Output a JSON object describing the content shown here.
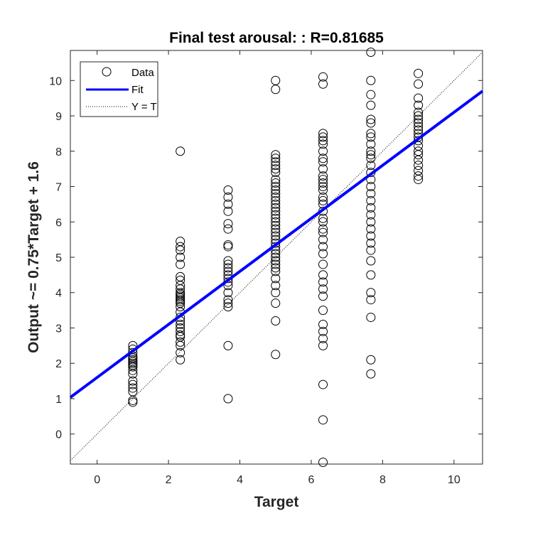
{
  "chart_data": {
    "type": "scatter",
    "title": "Final test arousal: : R=0.81685",
    "xlabel": "Target",
    "ylabel": "Output ~= 0.75*Target + 1.6",
    "xlim": [
      -0.75,
      10.8
    ],
    "ylim": [
      -0.85,
      10.85
    ],
    "xticks": [
      0,
      2,
      4,
      6,
      8,
      10
    ],
    "yticks": [
      0,
      1,
      2,
      3,
      4,
      5,
      6,
      7,
      8,
      9,
      10
    ],
    "grid": false,
    "legend_position": "top-left",
    "legend": [
      {
        "label": "Data",
        "style": "circle"
      },
      {
        "label": "Fit",
        "style": "solid"
      },
      {
        "label": "Y = T",
        "style": "dotted"
      }
    ],
    "colors": {
      "data": "#000000",
      "fit": "#0000ff",
      "identity": "#000000"
    },
    "fit": {
      "slope": 0.75,
      "intercept": 1.6
    },
    "series": [
      {
        "x": 1.0,
        "y": [
          0.9,
          0.95,
          1.2,
          1.3,
          1.4,
          1.5,
          1.7,
          1.8,
          1.9,
          1.95,
          2.0,
          2.05,
          2.1,
          2.15,
          2.2,
          2.3,
          2.4,
          2.5
        ]
      },
      {
        "x": 2.33,
        "y": [
          2.1,
          2.3,
          2.5,
          2.6,
          2.75,
          2.8,
          2.9,
          3.0,
          3.1,
          3.2,
          3.3,
          3.45,
          3.6,
          3.7,
          3.75,
          3.8,
          3.85,
          3.9,
          3.95,
          4.0,
          4.1,
          4.2,
          4.35,
          4.45,
          4.8,
          5.0,
          5.2,
          5.3,
          5.45,
          8.0
        ]
      },
      {
        "x": 3.67,
        "y": [
          1.0,
          2.5,
          3.6,
          3.7,
          3.8,
          4.0,
          4.2,
          4.3,
          4.4,
          4.5,
          4.6,
          4.7,
          4.8,
          4.9,
          5.3,
          5.35,
          5.8,
          5.95,
          6.3,
          6.5,
          6.7,
          6.9
        ]
      },
      {
        "x": 5.0,
        "y": [
          2.25,
          3.2,
          3.7,
          4.0,
          4.2,
          4.4,
          4.6,
          4.7,
          4.8,
          4.9,
          5.0,
          5.1,
          5.2,
          5.3,
          5.4,
          5.5,
          5.6,
          5.7,
          5.8,
          5.9,
          6.0,
          6.1,
          6.2,
          6.3,
          6.4,
          6.5,
          6.6,
          6.7,
          6.8,
          6.9,
          7.0,
          7.1,
          7.2,
          7.4,
          7.5,
          7.6,
          7.7,
          7.8,
          7.9,
          9.75,
          10.0
        ]
      },
      {
        "x": 6.33,
        "y": [
          -0.8,
          0.4,
          1.4,
          2.5,
          2.7,
          2.9,
          3.1,
          3.5,
          3.9,
          4.1,
          4.3,
          4.5,
          4.8,
          5.1,
          5.3,
          5.5,
          5.7,
          5.8,
          6.0,
          6.1,
          6.3,
          6.5,
          6.6,
          6.7,
          6.9,
          7.0,
          7.1,
          7.2,
          7.3,
          7.5,
          7.7,
          7.8,
          8.0,
          8.2,
          8.3,
          8.4,
          8.5,
          9.9,
          10.1
        ]
      },
      {
        "x": 7.67,
        "y": [
          1.7,
          2.1,
          3.3,
          3.8,
          4.0,
          4.5,
          4.9,
          5.2,
          5.4,
          5.6,
          5.8,
          6.0,
          6.2,
          6.4,
          6.6,
          6.8,
          7.0,
          7.2,
          7.4,
          7.6,
          7.8,
          7.9,
          8.0,
          8.2,
          8.4,
          8.5,
          8.8,
          8.9,
          9.3,
          9.6,
          10.0,
          10.8
        ]
      },
      {
        "x": 9.0,
        "y": [
          7.2,
          7.3,
          7.45,
          7.6,
          7.75,
          7.9,
          8.0,
          8.15,
          8.3,
          8.4,
          8.5,
          8.6,
          8.7,
          8.8,
          8.9,
          9.0,
          9.1,
          9.3,
          9.5,
          9.9,
          10.2
        ]
      }
    ]
  }
}
